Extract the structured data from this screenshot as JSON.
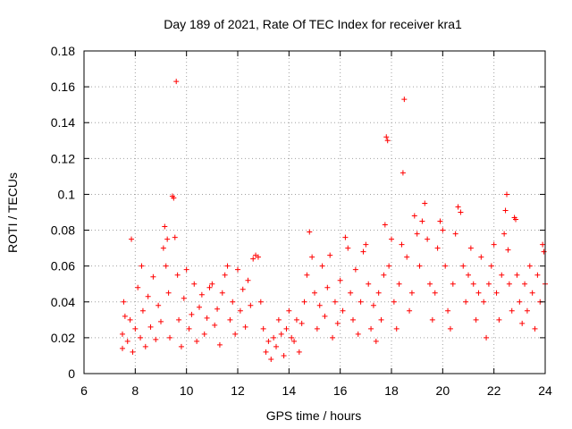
{
  "chart_data": {
    "type": "scatter",
    "title": "Day 189 of 2021, Rate Of TEC Index for receiver kra1",
    "xlabel": "GPS time / hours",
    "ylabel": "ROTI / TECUs",
    "xlim": [
      6,
      24
    ],
    "ylim": [
      0,
      0.18
    ],
    "x_ticks": [
      6,
      8,
      10,
      12,
      14,
      16,
      18,
      20,
      22,
      24
    ],
    "x_tick_labels": [
      "6",
      "8",
      "10",
      "12",
      "14",
      "16",
      "18",
      "20",
      "22",
      "24"
    ],
    "y_ticks": [
      0,
      0.02,
      0.04,
      0.06,
      0.08,
      0.1,
      0.12,
      0.14,
      0.16,
      0.18
    ],
    "y_tick_labels": [
      "0",
      "0.02",
      "0.04",
      "0.06",
      "0.08",
      "0.1",
      "0.12",
      "0.14",
      "0.16",
      "0.18"
    ],
    "grid": true,
    "marker": "+",
    "color": "#ff0000",
    "series": [
      {
        "name": "ROTI",
        "points": [
          [
            7.5,
            0.014
          ],
          [
            7.5,
            0.022
          ],
          [
            7.55,
            0.04
          ],
          [
            7.6,
            0.032
          ],
          [
            7.7,
            0.018
          ],
          [
            7.8,
            0.03
          ],
          [
            7.85,
            0.075
          ],
          [
            7.9,
            0.012
          ],
          [
            8.0,
            0.025
          ],
          [
            8.1,
            0.048
          ],
          [
            8.2,
            0.02
          ],
          [
            8.25,
            0.06
          ],
          [
            8.3,
            0.035
          ],
          [
            8.4,
            0.015
          ],
          [
            8.5,
            0.043
          ],
          [
            8.6,
            0.026
          ],
          [
            8.7,
            0.054
          ],
          [
            8.8,
            0.019
          ],
          [
            8.9,
            0.038
          ],
          [
            9.0,
            0.029
          ],
          [
            9.1,
            0.07
          ],
          [
            9.15,
            0.082
          ],
          [
            9.2,
            0.06
          ],
          [
            9.25,
            0.075
          ],
          [
            9.3,
            0.045
          ],
          [
            9.35,
            0.02
          ],
          [
            9.45,
            0.099
          ],
          [
            9.5,
            0.098
          ],
          [
            9.55,
            0.076
          ],
          [
            9.6,
            0.163
          ],
          [
            9.65,
            0.055
          ],
          [
            9.7,
            0.03
          ],
          [
            9.8,
            0.015
          ],
          [
            9.9,
            0.042
          ],
          [
            10.0,
            0.058
          ],
          [
            10.1,
            0.025
          ],
          [
            10.2,
            0.033
          ],
          [
            10.3,
            0.05
          ],
          [
            10.4,
            0.018
          ],
          [
            10.5,
            0.037
          ],
          [
            10.6,
            0.044
          ],
          [
            10.7,
            0.022
          ],
          [
            10.8,
            0.031
          ],
          [
            10.9,
            0.048
          ],
          [
            11.0,
            0.05
          ],
          [
            11.1,
            0.027
          ],
          [
            11.2,
            0.036
          ],
          [
            11.3,
            0.016
          ],
          [
            11.4,
            0.045
          ],
          [
            11.5,
            0.055
          ],
          [
            11.6,
            0.06
          ],
          [
            11.7,
            0.03
          ],
          [
            11.8,
            0.04
          ],
          [
            11.9,
            0.022
          ],
          [
            12.0,
            0.058
          ],
          [
            12.1,
            0.035
          ],
          [
            12.2,
            0.047
          ],
          [
            12.3,
            0.026
          ],
          [
            12.4,
            0.052
          ],
          [
            12.5,
            0.038
          ],
          [
            12.6,
            0.064
          ],
          [
            12.7,
            0.066
          ],
          [
            12.8,
            0.065
          ],
          [
            12.9,
            0.04
          ],
          [
            13.0,
            0.025
          ],
          [
            13.1,
            0.012
          ],
          [
            13.2,
            0.018
          ],
          [
            13.3,
            0.008
          ],
          [
            13.4,
            0.02
          ],
          [
            13.5,
            0.015
          ],
          [
            13.6,
            0.03
          ],
          [
            13.7,
            0.022
          ],
          [
            13.8,
            0.01
          ],
          [
            13.9,
            0.025
          ],
          [
            14.0,
            0.035
          ],
          [
            14.1,
            0.02
          ],
          [
            14.2,
            0.018
          ],
          [
            14.3,
            0.03
          ],
          [
            14.4,
            0.012
          ],
          [
            14.5,
            0.028
          ],
          [
            14.6,
            0.04
          ],
          [
            14.7,
            0.055
          ],
          [
            14.8,
            0.079
          ],
          [
            14.9,
            0.065
          ],
          [
            15.0,
            0.045
          ],
          [
            15.1,
            0.025
          ],
          [
            15.2,
            0.038
          ],
          [
            15.3,
            0.06
          ],
          [
            15.4,
            0.032
          ],
          [
            15.5,
            0.048
          ],
          [
            15.6,
            0.066
          ],
          [
            15.7,
            0.02
          ],
          [
            15.8,
            0.04
          ],
          [
            15.9,
            0.028
          ],
          [
            16.0,
            0.052
          ],
          [
            16.1,
            0.035
          ],
          [
            16.2,
            0.076
          ],
          [
            16.3,
            0.07
          ],
          [
            16.4,
            0.045
          ],
          [
            16.5,
            0.03
          ],
          [
            16.6,
            0.058
          ],
          [
            16.7,
            0.022
          ],
          [
            16.8,
            0.04
          ],
          [
            16.9,
            0.068
          ],
          [
            17.0,
            0.072
          ],
          [
            17.1,
            0.05
          ],
          [
            17.2,
            0.025
          ],
          [
            17.3,
            0.038
          ],
          [
            17.4,
            0.018
          ],
          [
            17.5,
            0.045
          ],
          [
            17.6,
            0.03
          ],
          [
            17.7,
            0.055
          ],
          [
            17.75,
            0.083
          ],
          [
            17.8,
            0.132
          ],
          [
            17.85,
            0.13
          ],
          [
            17.9,
            0.06
          ],
          [
            18.0,
            0.075
          ],
          [
            18.1,
            0.04
          ],
          [
            18.2,
            0.025
          ],
          [
            18.3,
            0.05
          ],
          [
            18.4,
            0.072
          ],
          [
            18.45,
            0.112
          ],
          [
            18.5,
            0.153
          ],
          [
            18.6,
            0.065
          ],
          [
            18.7,
            0.035
          ],
          [
            18.8,
            0.045
          ],
          [
            18.9,
            0.088
          ],
          [
            19.0,
            0.078
          ],
          [
            19.1,
            0.06
          ],
          [
            19.2,
            0.085
          ],
          [
            19.3,
            0.095
          ],
          [
            19.4,
            0.075
          ],
          [
            19.5,
            0.05
          ],
          [
            19.6,
            0.03
          ],
          [
            19.7,
            0.045
          ],
          [
            19.8,
            0.07
          ],
          [
            19.9,
            0.085
          ],
          [
            20.0,
            0.08
          ],
          [
            20.1,
            0.06
          ],
          [
            20.2,
            0.035
          ],
          [
            20.3,
            0.025
          ],
          [
            20.4,
            0.05
          ],
          [
            20.5,
            0.078
          ],
          [
            20.6,
            0.093
          ],
          [
            20.7,
            0.09
          ],
          [
            20.8,
            0.06
          ],
          [
            20.9,
            0.04
          ],
          [
            21.0,
            0.055
          ],
          [
            21.1,
            0.07
          ],
          [
            21.2,
            0.05
          ],
          [
            21.3,
            0.03
          ],
          [
            21.4,
            0.045
          ],
          [
            21.5,
            0.065
          ],
          [
            21.6,
            0.04
          ],
          [
            21.7,
            0.02
          ],
          [
            21.8,
            0.05
          ],
          [
            21.9,
            0.06
          ],
          [
            22.0,
            0.072
          ],
          [
            22.1,
            0.045
          ],
          [
            22.2,
            0.03
          ],
          [
            22.3,
            0.055
          ],
          [
            22.4,
            0.078
          ],
          [
            22.45,
            0.091
          ],
          [
            22.5,
            0.1
          ],
          [
            22.55,
            0.069
          ],
          [
            22.6,
            0.05
          ],
          [
            22.7,
            0.035
          ],
          [
            22.8,
            0.087
          ],
          [
            22.85,
            0.086
          ],
          [
            22.9,
            0.055
          ],
          [
            23.0,
            0.04
          ],
          [
            23.1,
            0.028
          ],
          [
            23.2,
            0.05
          ],
          [
            23.3,
            0.035
          ],
          [
            23.4,
            0.06
          ],
          [
            23.5,
            0.045
          ],
          [
            23.6,
            0.025
          ],
          [
            23.7,
            0.055
          ],
          [
            23.8,
            0.04
          ],
          [
            23.9,
            0.072
          ],
          [
            23.95,
            0.068
          ],
          [
            24.0,
            0.05
          ]
        ]
      }
    ]
  }
}
